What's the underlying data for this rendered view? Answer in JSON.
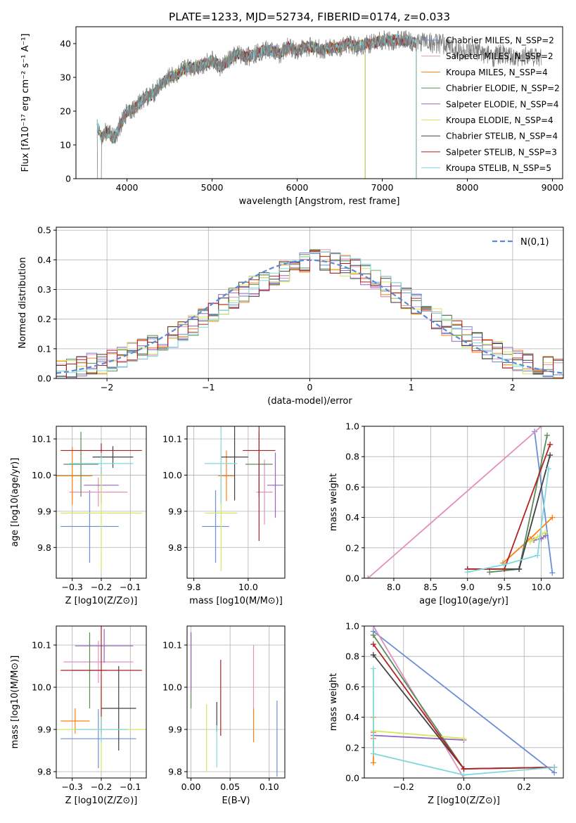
{
  "figure": {
    "title": "PLATE=1233, MJD=52734, FIBERID=0174, z=0.033"
  },
  "chart_data": [
    {
      "id": "spectrum",
      "type": "line",
      "xlabel": "wavelength [Angstrom, rest frame]",
      "ylabel": "Flux [fλ10⁻¹⁷ erg cm⁻² s⁻¹ A⁻¹]",
      "xlim": [
        3400,
        9120
      ],
      "ylim": [
        0,
        45
      ],
      "xticks": [
        4000,
        5000,
        6000,
        7000,
        8000,
        9000
      ],
      "yticks": [
        0,
        10,
        20,
        30,
        40
      ],
      "grid": false,
      "legend_position": "right",
      "data_series": {
        "name": "data",
        "color": "#808080"
      },
      "x": [
        3650,
        3700,
        3750,
        3800,
        3850,
        3900,
        3950,
        4000,
        4100,
        4200,
        4300,
        4400,
        4500,
        4600,
        4700,
        4800,
        4900,
        5000,
        5100,
        5200,
        5300,
        5400,
        5500,
        5600,
        5700,
        5800,
        5900,
        6000,
        6100,
        6200,
        6300,
        6400,
        6500,
        6600,
        6700,
        6800,
        6900,
        7000,
        7100,
        7200,
        7300,
        7400,
        7500,
        7600,
        7700,
        7800,
        7900,
        8000,
        8100,
        8200,
        8300,
        8400,
        8500,
        8600,
        8700,
        8800,
        8870
      ],
      "y": [
        16,
        12,
        14,
        13,
        12,
        15,
        17,
        20,
        21,
        24,
        25,
        28,
        30,
        31,
        33,
        33,
        34,
        35,
        33,
        35,
        37,
        36,
        37,
        38,
        38,
        37,
        39,
        38,
        39,
        39,
        38,
        39,
        39,
        40,
        39,
        40,
        40,
        41,
        41,
        41,
        41,
        40,
        41,
        40,
        40,
        39,
        38,
        37,
        38,
        37,
        36,
        37,
        36,
        35,
        37,
        36,
        36
      ],
      "series": [
        {
          "name": "Chabrier MILES, N_SSP=2",
          "color": "#6b8fd6",
          "xmax": 7400
        },
        {
          "name": "Salpeter MILES, N_SSP=2",
          "color": "#e38fc0",
          "xmax": 7400
        },
        {
          "name": "Kroupa MILES, N_SSP=4",
          "color": "#ff7f0e",
          "xmax": 7400
        },
        {
          "name": "Chabrier ELODIE, N_SSP=2",
          "color": "#5a8a5a",
          "xmax": 6800
        },
        {
          "name": "Salpeter ELODIE, N_SSP=4",
          "color": "#9467bd",
          "xmax": 6800
        },
        {
          "name": "Kroupa ELODIE, N_SSP=4",
          "color": "#d4e85a",
          "xmax": 6800
        },
        {
          "name": "Chabrier STELIB, N_SSP=4",
          "color": "#404040",
          "xmax": 7400
        },
        {
          "name": "Salpeter STELIB, N_SSP=3",
          "color": "#b22222",
          "xmax": 7400
        },
        {
          "name": "Kroupa STELIB, N_SSP=5",
          "color": "#7fd8de",
          "xmax": 7400
        }
      ]
    },
    {
      "id": "residuals",
      "type": "line",
      "xlabel": "(data-model)/error",
      "ylabel": "Normed distribution",
      "xlim": [
        -2.5,
        2.5
      ],
      "ylim": [
        0,
        0.51
      ],
      "xticks": [
        -2,
        -1,
        0,
        1,
        2
      ],
      "yticks": [
        0.0,
        0.1,
        0.2,
        0.3,
        0.4,
        0.5
      ],
      "grid": true,
      "legend": "N(0,1)",
      "legend_position": "top-right",
      "gaussian_color": "#5b8bd6",
      "bin_edges": [
        -2.5,
        -2.4,
        -2.3,
        -2.2,
        -2.1,
        -2.0,
        -1.9,
        -1.8,
        -1.7,
        -1.6,
        -1.5,
        -1.4,
        -1.3,
        -1.2,
        -1.1,
        -1.0,
        -0.9,
        -0.8,
        -0.7,
        -0.6,
        -0.5,
        -0.4,
        -0.3,
        -0.2,
        -0.1,
        0.0,
        0.1,
        0.2,
        0.3,
        0.4,
        0.5,
        0.6,
        0.7,
        0.8,
        0.9,
        1.0,
        1.1,
        1.2,
        1.3,
        1.4,
        1.5,
        1.6,
        1.7,
        1.8,
        1.9,
        2.0,
        2.1,
        2.2,
        2.3,
        2.4,
        2.5
      ],
      "histogram_values": [
        0.03,
        0.03,
        0.04,
        0.05,
        0.05,
        0.06,
        0.07,
        0.09,
        0.1,
        0.11,
        0.13,
        0.14,
        0.16,
        0.18,
        0.2,
        0.22,
        0.25,
        0.27,
        0.29,
        0.31,
        0.33,
        0.35,
        0.36,
        0.38,
        0.39,
        0.4,
        0.4,
        0.39,
        0.38,
        0.37,
        0.35,
        0.33,
        0.31,
        0.29,
        0.27,
        0.25,
        0.22,
        0.2,
        0.18,
        0.16,
        0.14,
        0.12,
        0.1,
        0.09,
        0.07,
        0.06,
        0.05,
        0.04,
        0.04,
        0.03
      ]
    },
    {
      "id": "age-vs-z",
      "type": "scatter",
      "xlabel": "Z [log10(Z/Z⊙)]",
      "ylabel": "age  [log10(age/yr)]",
      "xlim": [
        -0.355,
        -0.045
      ],
      "ylim": [
        9.715,
        10.135
      ],
      "xticks": [
        -0.3,
        -0.2,
        -0.1
      ],
      "yticks": [
        9.8,
        9.9,
        10.0,
        10.1
      ],
      "grid": true,
      "points": [
        {
          "color": "#6b8fd6",
          "x": -0.24,
          "y": 9.858,
          "xerr": 0.1,
          "yerr": 0.1
        },
        {
          "color": "#e38fc0",
          "x": -0.21,
          "y": 9.953,
          "xerr": 0.1,
          "yerr": 0.04
        },
        {
          "color": "#ff7f0e",
          "x": -0.3,
          "y": 9.998,
          "xerr": 0.07,
          "yerr": 0.08
        },
        {
          "color": "#5a8a5a",
          "x": -0.27,
          "y": 10.03,
          "xerr": 0.06,
          "yerr": 0.09
        },
        {
          "color": "#9467bd",
          "x": -0.2,
          "y": 9.972,
          "xerr": 0.06,
          "yerr": 0.05
        },
        {
          "color": "#d4e85a",
          "x": -0.2,
          "y": 9.895,
          "xerr": 0.14,
          "yerr": 0.16
        },
        {
          "color": "#404040",
          "x": -0.16,
          "y": 10.05,
          "xerr": 0.07,
          "yerr": 0.03
        },
        {
          "color": "#b22222",
          "x": -0.2,
          "y": 10.068,
          "xerr": 0.14,
          "yerr": 0.02
        },
        {
          "color": "#7fd8de",
          "x": -0.2,
          "y": 10.032,
          "xerr": 0.11,
          "yerr": 0.03
        }
      ]
    },
    {
      "id": "age-vs-mass",
      "type": "scatter",
      "xlabel": "mass [log10(M/M⊙)]",
      "ylabel": "",
      "xlim": [
        9.775,
        10.135
      ],
      "ylim": [
        9.715,
        10.135
      ],
      "xticks": [
        9.8,
        10.0
      ],
      "yticks": [
        9.8,
        9.9,
        10.0,
        10.1
      ],
      "grid": true,
      "points": [
        {
          "color": "#6b8fd6",
          "x": 9.88,
          "y": 9.858,
          "xerr": 0.05,
          "yerr": 0.1
        },
        {
          "color": "#e38fc0",
          "x": 10.06,
          "y": 9.953,
          "xerr": 0.03,
          "yerr": 0.09
        },
        {
          "color": "#ff7f0e",
          "x": 9.92,
          "y": 9.998,
          "xerr": 0.03,
          "yerr": 0.07
        },
        {
          "color": "#5a8a5a",
          "x": 10.04,
          "y": 10.03,
          "xerr": 0.05,
          "yerr": 0.09
        },
        {
          "color": "#9467bd",
          "x": 10.1,
          "y": 9.972,
          "xerr": 0.03,
          "yerr": 0.09
        },
        {
          "color": "#d4e85a",
          "x": 9.9,
          "y": 9.895,
          "xerr": 0.06,
          "yerr": 0.16
        },
        {
          "color": "#404040",
          "x": 9.95,
          "y": 10.05,
          "xerr": 0.05,
          "yerr": 0.12
        },
        {
          "color": "#b22222",
          "x": 10.04,
          "y": 10.068,
          "xerr": 0.06,
          "yerr": 0.25
        },
        {
          "color": "#7fd8de",
          "x": 9.9,
          "y": 10.032,
          "xerr": 0.06,
          "yerr": 0.11
        }
      ]
    },
    {
      "id": "weight-vs-age",
      "type": "line",
      "xlabel": "age  [log10(age/yr)]",
      "ylabel": "mass weight",
      "xlim": [
        7.6,
        10.3
      ],
      "ylim": [
        0,
        1
      ],
      "xticks": [
        8.0,
        8.5,
        9.0,
        9.5,
        10.0
      ],
      "yticks": [
        0.0,
        0.2,
        0.4,
        0.6,
        0.8,
        1.0
      ],
      "grid": true,
      "series": [
        {
          "color": "#6b8fd6",
          "x": [
            9.91,
            10.15
          ],
          "y": [
            0.965,
            0.035
          ]
        },
        {
          "color": "#e38fc0",
          "x": [
            7.65,
            10.0
          ],
          "y": [
            0.0,
            1.0
          ]
        },
        {
          "color": "#ff7f0e",
          "x": [
            9.48,
            9.85,
            10.15
          ],
          "y": [
            0.1,
            0.26,
            0.4
          ]
        },
        {
          "color": "#5a8a5a",
          "x": [
            9.3,
            9.7,
            10.08
          ],
          "y": [
            0.04,
            0.06,
            0.94
          ]
        },
        {
          "color": "#9467bd",
          "x": [
            9.9,
            10.0,
            10.06
          ],
          "y": [
            0.25,
            0.26,
            0.28
          ]
        },
        {
          "color": "#d4e85a",
          "x": [
            9.85,
            9.95,
            10.05
          ],
          "y": [
            0.24,
            0.27,
            0.3
          ]
        },
        {
          "color": "#404040",
          "x": [
            9.0,
            9.7,
            10.12
          ],
          "y": [
            0.06,
            0.06,
            0.81
          ]
        },
        {
          "color": "#b22222",
          "x": [
            9.0,
            9.5,
            10.12
          ],
          "y": [
            0.06,
            0.06,
            0.88
          ]
        },
        {
          "color": "#7fd8de",
          "x": [
            9.0,
            9.5,
            9.95,
            10.1
          ],
          "y": [
            0.04,
            0.09,
            0.15,
            0.72
          ]
        }
      ]
    },
    {
      "id": "mass-vs-z",
      "type": "scatter",
      "xlabel": "Z [log10(Z/Z⊙)]",
      "ylabel": "mass [log10(M/M⊙)]",
      "xlim": [
        -0.355,
        -0.045
      ],
      "ylim": [
        9.785,
        10.145
      ],
      "xticks": [
        -0.3,
        -0.2,
        -0.1
      ],
      "yticks": [
        9.8,
        9.9,
        10.0,
        10.1
      ],
      "grid": true,
      "points": [
        {
          "color": "#6b8fd6",
          "x": -0.21,
          "y": 9.878,
          "xerr": 0.13,
          "yerr": 0.07
        },
        {
          "color": "#e38fc0",
          "x": -0.21,
          "y": 10.06,
          "xerr": 0.12,
          "yerr": 0.05
        },
        {
          "color": "#ff7f0e",
          "x": -0.29,
          "y": 9.92,
          "xerr": 0.05,
          "yerr": 0.03
        },
        {
          "color": "#5a8a5a",
          "x": -0.24,
          "y": 10.04,
          "xerr": 0.06,
          "yerr": 0.09
        },
        {
          "color": "#9467bd",
          "x": -0.19,
          "y": 10.098,
          "xerr": 0.1,
          "yerr": 0.04
        },
        {
          "color": "#d4e85a",
          "x": -0.2,
          "y": 9.9,
          "xerr": 0.15,
          "yerr": 0.1
        },
        {
          "color": "#404040",
          "x": -0.14,
          "y": 9.95,
          "xerr": 0.06,
          "yerr": 0.1
        },
        {
          "color": "#b22222",
          "x": -0.2,
          "y": 10.04,
          "xerr": 0.14,
          "yerr": 0.15
        },
        {
          "color": "#7fd8de",
          "x": -0.2,
          "y": 9.9,
          "xerr": 0.09,
          "yerr": 0.03
        }
      ]
    },
    {
      "id": "mass-vs-ebv",
      "type": "scatter",
      "xlabel": "E(B-V)",
      "ylabel": "",
      "xlim": [
        -0.005,
        0.12
      ],
      "ylim": [
        9.785,
        10.145
      ],
      "xticks": [
        0.0,
        0.05,
        0.1
      ],
      "yticks": [
        9.8,
        9.9,
        10.0,
        10.1
      ],
      "grid": true,
      "points": [
        {
          "color": "#6b8fd6",
          "x": 0.11,
          "y": 9.878,
          "xerr": 0,
          "yerr": 0.09
        },
        {
          "color": "#e38fc0",
          "x": 0.08,
          "y": 10.02,
          "xerr": 0,
          "yerr": 0.08
        },
        {
          "color": "#ff7f0e",
          "x": 0.08,
          "y": 9.91,
          "xerr": 0,
          "yerr": 0.04
        },
        {
          "color": "#5a8a5a",
          "x": 0.0,
          "y": 10.04,
          "xerr": 0,
          "yerr": 0.09
        },
        {
          "color": "#9467bd",
          "x": 0.0,
          "y": 10.06,
          "xerr": 0,
          "yerr": 0.07
        },
        {
          "color": "#d4e85a",
          "x": 0.02,
          "y": 9.88,
          "xerr": 0,
          "yerr": 0.08
        },
        {
          "color": "#404040",
          "x": 0.033,
          "y": 9.93,
          "xerr": 0,
          "yerr": 0.035
        },
        {
          "color": "#b22222",
          "x": 0.038,
          "y": 9.975,
          "xerr": 0,
          "yerr": 0.09
        },
        {
          "color": "#7fd8de",
          "x": 0.033,
          "y": 9.86,
          "xerr": 0,
          "yerr": 0.05
        }
      ]
    },
    {
      "id": "weight-vs-z",
      "type": "line",
      "xlabel": "Z [log10(Z/Z⊙)]",
      "ylabel": "mass weight",
      "xlim": [
        -0.33,
        0.33
      ],
      "ylim": [
        0,
        1
      ],
      "xticks": [
        -0.2,
        0.0,
        0.2
      ],
      "yticks": [
        0.0,
        0.2,
        0.4,
        0.6,
        0.8,
        1.0
      ],
      "grid": true,
      "series": [
        {
          "color": "#6b8fd6",
          "x": [
            -0.3,
            0.3
          ],
          "y": [
            0.965,
            0.035
          ]
        },
        {
          "color": "#e38fc0",
          "x": [
            -0.3,
            0.0
          ],
          "y": [
            1.0,
            0.0
          ]
        },
        {
          "color": "#ff7f0e",
          "x": [
            -0.3,
            -0.3,
            -0.3,
            -0.3
          ],
          "y": [
            0.1,
            0.26,
            0.3,
            0.4
          ]
        },
        {
          "color": "#5a8a5a",
          "x": [
            -0.3,
            0.0,
            0.3
          ],
          "y": [
            0.94,
            0.06,
            0.07
          ]
        },
        {
          "color": "#9467bd",
          "x": [
            -0.3,
            0.0
          ],
          "y": [
            0.28,
            0.25
          ]
        },
        {
          "color": "#d4e85a",
          "x": [
            -0.3,
            0.0
          ],
          "y": [
            0.31,
            0.26
          ]
        },
        {
          "color": "#404040",
          "x": [
            -0.3,
            0.0,
            0.3
          ],
          "y": [
            0.81,
            0.06,
            0.07
          ]
        },
        {
          "color": "#b22222",
          "x": [
            -0.3,
            0.0,
            0.3
          ],
          "y": [
            0.88,
            0.06,
            0.07
          ]
        },
        {
          "color": "#7fd8de",
          "x": [
            -0.3,
            -0.3,
            0.0,
            0.3
          ],
          "y": [
            0.72,
            0.16,
            0.02,
            0.07
          ]
        }
      ]
    }
  ]
}
